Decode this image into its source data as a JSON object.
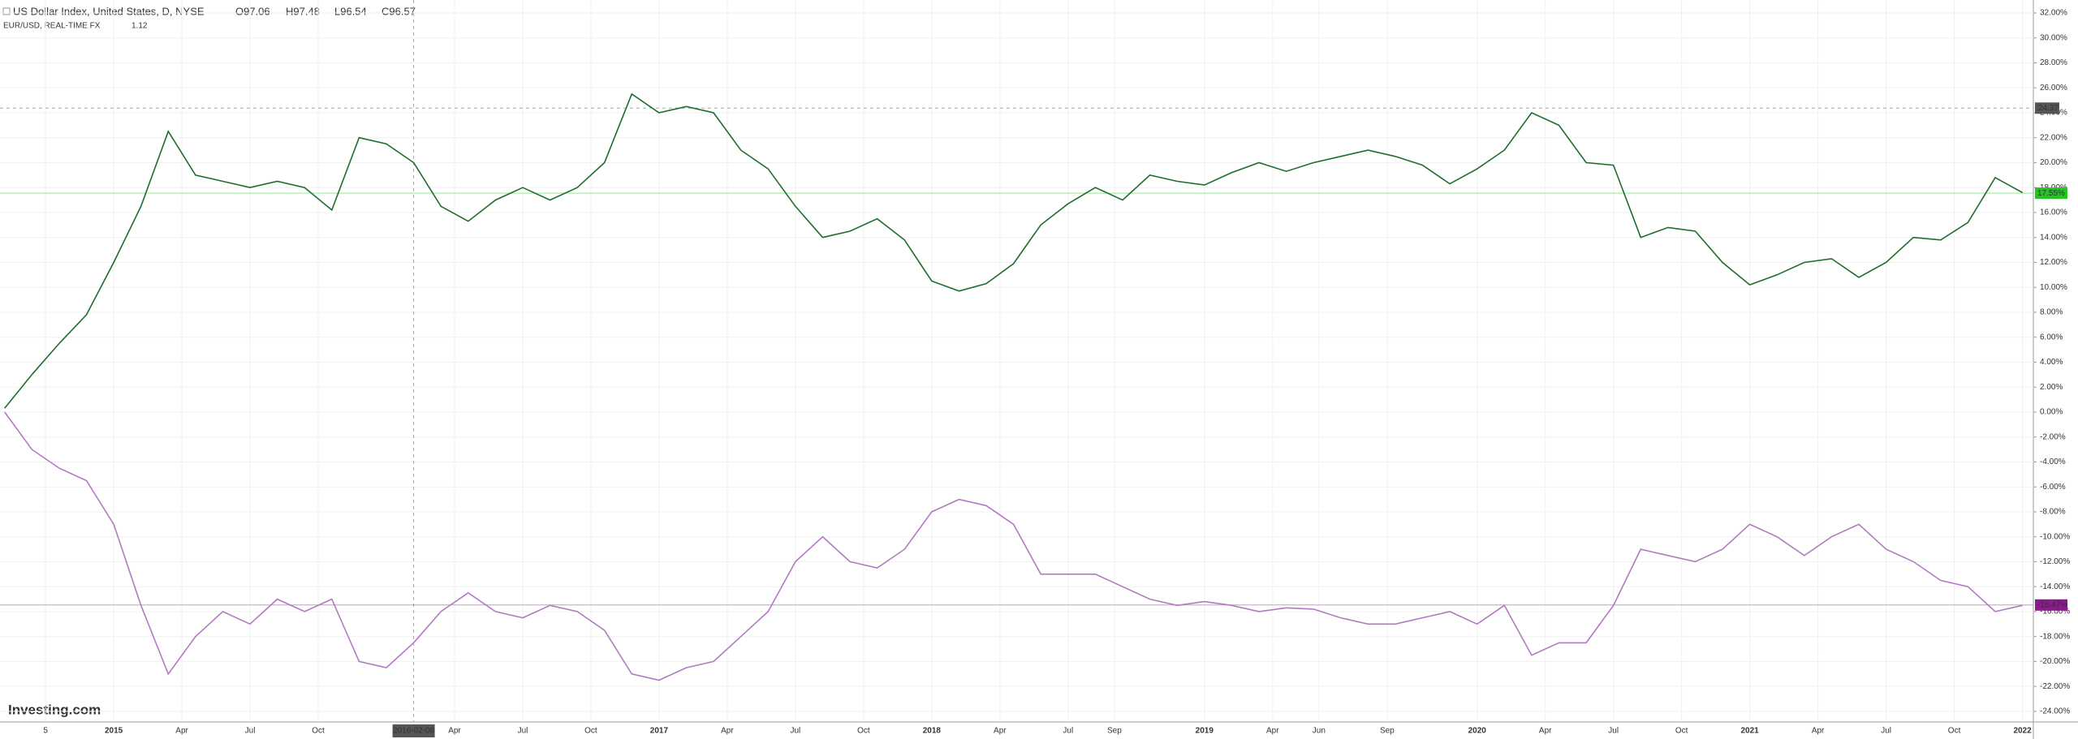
{
  "chart_data": {
    "type": "line",
    "header": {
      "symbol": "US Dollar Index, United States, D, NYSE",
      "open": "O97.06",
      "high": "H97.48",
      "low": "L96.54",
      "close": "C96.57",
      "compare_symbol": "EUR/USD, REAL-TIME FX",
      "compare_value": "1.12"
    },
    "logo": "Investing.com",
    "xlim": [
      2014.583,
      2022.04
    ],
    "ylim": [
      -24.85,
      33.04
    ],
    "grid": true,
    "xticks": [
      {
        "value": 2014.75,
        "label": "5"
      },
      2015,
      {
        "value": 2015.25,
        "label": "Apr"
      },
      {
        "value": 2015.5,
        "label": "Jul"
      },
      {
        "value": 2015.75,
        "label": "Oct"
      },
      {
        "value": 2016.25,
        "label": "Apr"
      },
      {
        "value": 2016.5,
        "label": "Jul"
      },
      {
        "value": 2016.75,
        "label": "Oct"
      },
      2017,
      {
        "value": 2017.25,
        "label": "Apr"
      },
      {
        "value": 2017.5,
        "label": "Jul"
      },
      {
        "value": 2017.75,
        "label": "Oct"
      },
      2018,
      {
        "value": 2018.25,
        "label": "Apr"
      },
      {
        "value": 2018.5,
        "label": "Jul"
      },
      {
        "value": 2018.67,
        "label": "Sep"
      },
      2019,
      {
        "value": 2019.25,
        "label": "Apr"
      },
      {
        "value": 2019.42,
        "label": "Jun"
      },
      {
        "value": 2019.67,
        "label": "Sep"
      },
      2020,
      {
        "value": 2020.25,
        "label": "Apr"
      },
      {
        "value": 2020.5,
        "label": "Jul"
      },
      {
        "value": 2020.75,
        "label": "Oct"
      },
      2021,
      {
        "value": 2021.25,
        "label": "Apr"
      },
      {
        "value": 2021.5,
        "label": "Jul"
      },
      {
        "value": 2021.75,
        "label": "Oct"
      },
      2022
    ],
    "yticks": [
      {
        "value": 32,
        "label": "32.00%"
      },
      {
        "value": 30,
        "label": "30.00%"
      },
      {
        "value": 28,
        "label": "28.00%"
      },
      {
        "value": 26,
        "label": "26.00%"
      },
      {
        "value": 24,
        "label": "24.00%"
      },
      {
        "value": 22,
        "label": "22.00%"
      },
      {
        "value": 20,
        "label": "20.00%"
      },
      {
        "value": 18,
        "label": "18.00%"
      },
      {
        "value": 16,
        "label": "16.00%"
      },
      {
        "value": 14,
        "label": "14.00%"
      },
      {
        "value": 12,
        "label": "12.00%"
      },
      {
        "value": 10,
        "label": "10.00%"
      },
      {
        "value": 8,
        "label": "8.00%"
      },
      {
        "value": 6,
        "label": "6.00%"
      },
      {
        "value": 4,
        "label": "4.00%"
      },
      {
        "value": 2,
        "label": "2.00%"
      },
      {
        "value": 0,
        "label": "0.00%"
      },
      {
        "value": -2,
        "label": "-2.00%"
      },
      {
        "value": -4,
        "label": "-4.00%"
      },
      {
        "value": -6,
        "label": "-6.00%"
      },
      {
        "value": -8,
        "label": "-8.00%"
      },
      {
        "value": -10,
        "label": "-10.00%"
      },
      {
        "value": -12,
        "label": "-12.00%"
      },
      {
        "value": -14,
        "label": "-14.00%"
      },
      {
        "value": -16,
        "label": "-16.00%"
      },
      {
        "value": -18,
        "label": "-18.00%"
      },
      {
        "value": -20,
        "label": "-20.00%"
      },
      {
        "value": -22,
        "label": "-22.00%"
      },
      {
        "value": -24,
        "label": "-24.00%"
      }
    ],
    "x": [
      2014.6,
      2014.7,
      2014.8,
      2014.9,
      2015.0,
      2015.1,
      2015.2,
      2015.3,
      2015.4,
      2015.5,
      2015.6,
      2015.7,
      2015.8,
      2015.9,
      2016.0,
      2016.1,
      2016.2,
      2016.3,
      2016.4,
      2016.5,
      2016.6,
      2016.7,
      2016.8,
      2016.9,
      2017.0,
      2017.1,
      2017.2,
      2017.3,
      2017.4,
      2017.5,
      2017.6,
      2017.7,
      2017.8,
      2017.9,
      2018.0,
      2018.1,
      2018.2,
      2018.3,
      2018.4,
      2018.5,
      2018.6,
      2018.7,
      2018.8,
      2018.9,
      2019.0,
      2019.1,
      2019.2,
      2019.3,
      2019.4,
      2019.5,
      2019.6,
      2019.7,
      2019.8,
      2019.9,
      2020.0,
      2020.1,
      2020.2,
      2020.3,
      2020.4,
      2020.5,
      2020.6,
      2020.7,
      2020.8,
      2020.9,
      2021.0,
      2021.1,
      2021.2,
      2021.3,
      2021.4,
      2021.5,
      2021.6,
      2021.7,
      2021.8,
      2021.9,
      2022.0
    ],
    "series": [
      {
        "color": "#1f6d2c",
        "last_value": 17.55,
        "last_label": "17.55%",
        "last_color": "#22c522",
        "values": [
          0.3,
          3,
          5.5,
          7.8,
          12,
          16.5,
          22.5,
          19,
          18.5,
          18,
          18.5,
          18,
          16.2,
          22,
          21.5,
          20,
          16.5,
          15.3,
          17,
          18,
          17,
          18,
          20,
          25.5,
          24,
          24.5,
          24,
          21,
          19.5,
          16.5,
          14,
          14.5,
          15.5,
          13.8,
          10.5,
          9.7,
          10.3,
          11.9,
          15,
          16.7,
          18,
          17,
          19,
          18.5,
          18.2,
          19.2,
          20,
          19.3,
          20,
          20.5,
          21,
          20.5,
          19.8,
          18.3,
          19.5,
          21,
          24,
          23,
          20,
          19.8,
          14,
          14.8,
          14.5,
          12,
          10.2,
          11,
          12,
          12.3,
          10.8,
          12,
          14,
          13.8,
          15.2,
          18.8,
          17.6
        ]
      },
      {
        "color": "#b27ac0",
        "last_value": -15.47,
        "last_label": "-15.47%",
        "last_color": "#8b1a8b",
        "values": [
          0,
          -3,
          -4.5,
          -5.5,
          -9,
          -15.5,
          -21,
          -18,
          -16,
          -17,
          -15,
          -16,
          -15,
          -20,
          -20.5,
          -18.5,
          -16,
          -14.5,
          -16,
          -16.5,
          -15.5,
          -16,
          -17.5,
          -21,
          -21.5,
          -20.5,
          -20,
          -18,
          -16,
          -12,
          -10,
          -12,
          -12.5,
          -11,
          -8,
          -7,
          -7.5,
          -9,
          -13,
          -13,
          -13,
          -14,
          -15,
          -15.5,
          -15.2,
          -15.5,
          -16,
          -15.7,
          -15.8,
          -16.5,
          -17,
          -17,
          -16.5,
          -16,
          -17,
          -15.5,
          -19.5,
          -18.5,
          -18.5,
          -15.5,
          -11,
          -11.5,
          -12,
          -11,
          -9,
          -10,
          -11.5,
          -10,
          -9,
          -11,
          -12,
          -13.5,
          -14,
          -16,
          -15.5
        ]
      }
    ],
    "crosshair": {
      "x": 2016.1,
      "x_label": "2016-02-08",
      "y": 24.37,
      "y_label": "24.37"
    }
  }
}
